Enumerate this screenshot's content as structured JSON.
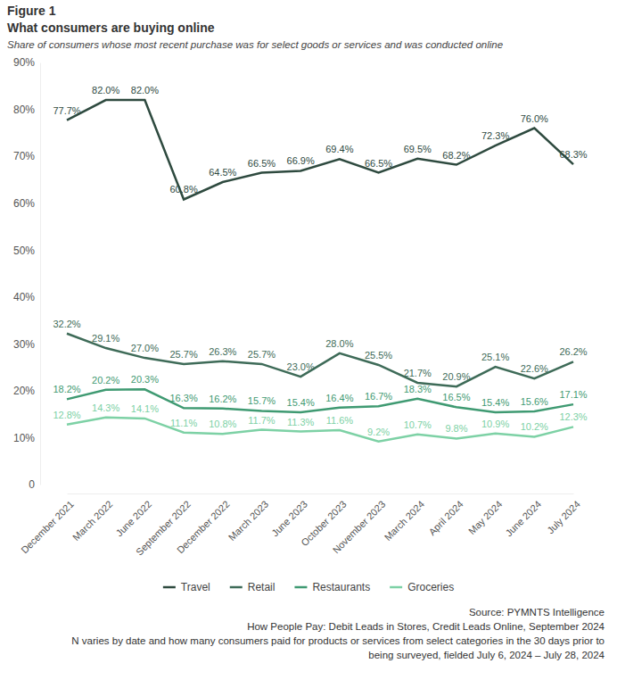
{
  "chart_data": {
    "type": "line",
    "figure": "Figure 1",
    "title": "What consumers are buying online",
    "subtitle": "Share of consumers whose most recent purchase was for select goods or services and was conducted online",
    "source": [
      "Source: PYMNTS Intelligence",
      "How People Pay: Debit Leads in Stores, Credit Leads Online, September 2024",
      "N varies by date and how many consumers paid for products or services from select categories in the 30 days prior to",
      "being surveyed, fielded July 6, 2024 – July 28, 2024"
    ],
    "categories": [
      "December 2021",
      "March 2022",
      "June 2022",
      "September 2022",
      "December 2022",
      "March 2023",
      "June 2023",
      "October 2023",
      "November 2023",
      "March 2024",
      "April 2024",
      "May 2024",
      "June 2024",
      "July 2024"
    ],
    "series": [
      {
        "name": "Travel",
        "color": "#2e4a3f",
        "values": [
          77.7,
          82.0,
          82.0,
          60.8,
          64.5,
          66.5,
          66.9,
          69.4,
          66.5,
          69.5,
          68.2,
          72.3,
          76.0,
          68.3
        ],
        "value_labels": [
          "77.7%",
          "82.0%",
          "82.0%",
          "60.8%",
          "64.5%",
          "66.5%",
          "66.9%",
          "69.4%",
          "66.5%",
          "69.5%",
          "68.2%",
          "72.3%",
          "76.0%",
          "68.3%"
        ]
      },
      {
        "name": "Retail",
        "color": "#3e6b58",
        "values": [
          32.2,
          29.1,
          27.0,
          25.7,
          26.3,
          25.7,
          23.0,
          28.0,
          25.5,
          21.7,
          20.9,
          25.1,
          22.6,
          26.2
        ],
        "value_labels": [
          "32.2%",
          "29.1%",
          "27.0%",
          "25.7%",
          "26.3%",
          "25.7%",
          "23.0%",
          "28.0%",
          "25.5%",
          "21.7%",
          "20.9%",
          "25.1%",
          "22.6%",
          "26.2%"
        ]
      },
      {
        "name": "Restaurants",
        "color": "#3f9a72",
        "values": [
          18.2,
          20.2,
          20.3,
          16.3,
          16.2,
          15.7,
          15.4,
          16.4,
          16.7,
          18.3,
          16.5,
          15.4,
          15.6,
          17.1
        ],
        "value_labels": [
          "18.2%",
          "20.2%",
          "20.3%",
          "16.3%",
          "16.2%",
          "15.7%",
          "15.4%",
          "16.4%",
          "16.7%",
          "18.3%",
          "16.5%",
          "15.4%",
          "15.6%",
          "17.1%"
        ]
      },
      {
        "name": "Groceries",
        "color": "#7dd1a5",
        "values": [
          12.8,
          14.3,
          14.1,
          11.1,
          10.8,
          11.7,
          11.3,
          11.6,
          9.2,
          10.7,
          9.8,
          10.9,
          10.2,
          12.3
        ],
        "value_labels": [
          "12.8%",
          "14.3%",
          "14.1%",
          "11.1%",
          "10.8%",
          "11.7%",
          "11.3%",
          "11.6%",
          "9.2%",
          "10.7%",
          "9.8%",
          "10.9%",
          "10.2%",
          "12.3%"
        ]
      }
    ],
    "ylim": [
      0,
      90
    ],
    "yticks": [
      0,
      {
        "value": 10,
        "label": "10%"
      },
      {
        "value": 20,
        "label": "20%"
      },
      {
        "value": 30,
        "label": "30%"
      },
      {
        "value": 40,
        "label": "40%"
      },
      {
        "value": 50,
        "label": "50%"
      },
      {
        "value": 60,
        "label": "60%"
      },
      {
        "value": 70,
        "label": "70%"
      },
      {
        "value": 80,
        "label": "80%"
      },
      {
        "value": 90,
        "label": "90%"
      }
    ],
    "grid": false,
    "legend": "bottom",
    "data_labels": true
  }
}
